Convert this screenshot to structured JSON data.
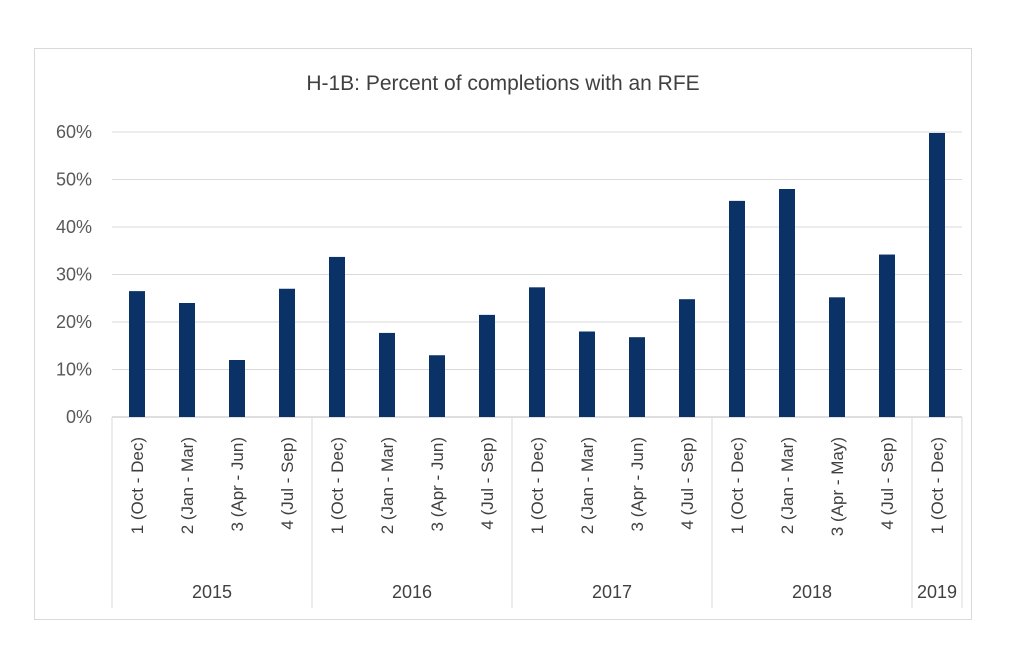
{
  "chart_data": {
    "type": "bar",
    "title": "H-1B: Percent of completions with an RFE",
    "xlabel": "",
    "ylabel": "",
    "ylim": [
      0,
      60
    ],
    "yticks": [
      "0%",
      "10%",
      "20%",
      "30%",
      "40%",
      "50%",
      "60%"
    ],
    "grid": true,
    "bar_color": "#0a3266",
    "groups": [
      {
        "year": "2015",
        "categories": [
          "1 (Oct - Dec)",
          "2 (Jan - Mar)",
          "3 (Apr - Jun)",
          "4 (Jul - Sep)"
        ],
        "values": [
          26.5,
          24,
          12,
          27
        ]
      },
      {
        "year": "2016",
        "categories": [
          "1 (Oct - Dec)",
          "2 (Jan - Mar)",
          "3 (Apr - Jun)",
          "4 (Jul - Sep)"
        ],
        "values": [
          33.7,
          17.7,
          13,
          21.5
        ]
      },
      {
        "year": "2017",
        "categories": [
          "1 (Oct - Dec)",
          "2 (Jan - Mar)",
          "3 (Apr - Jun)",
          "4 (Jul - Sep)"
        ],
        "values": [
          27.3,
          18,
          16.8,
          24.8
        ]
      },
      {
        "year": "2018",
        "categories": [
          "1 (Oct - Dec)",
          "2 (Jan - Mar)",
          "3 (Apr - May)",
          "4 (Jul - Sep)"
        ],
        "values": [
          45.5,
          48,
          25.2,
          34.2
        ]
      },
      {
        "year": "2019",
        "categories": [
          "1 (Oct - Dec)"
        ],
        "values": [
          59.8
        ]
      }
    ]
  }
}
